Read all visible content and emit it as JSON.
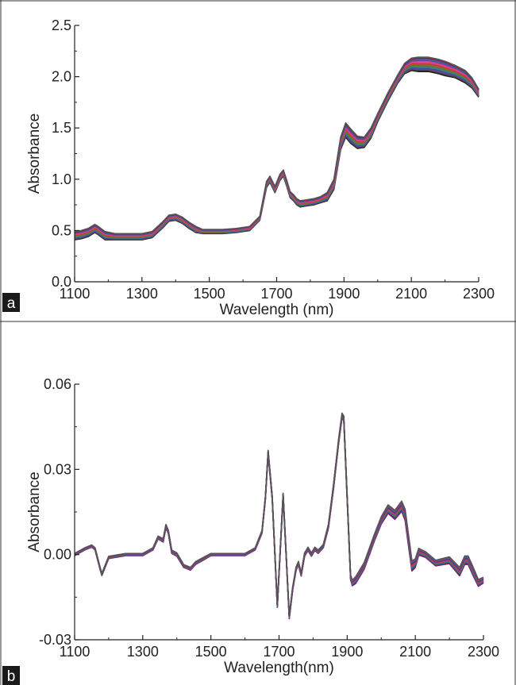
{
  "chart_data": [
    {
      "type": "line",
      "panel_label": "a",
      "xlabel": "Wavelength (nm)",
      "ylabel": "Absorbance",
      "xlim": [
        1100,
        2300
      ],
      "ylim": [
        0.0,
        2.5
      ],
      "xticks": [
        1100,
        1300,
        1500,
        1700,
        1900,
        2100,
        2300
      ],
      "yticks": [
        0.0,
        0.5,
        1.0,
        1.5,
        2.0,
        2.5
      ],
      "ytick_labels": [
        "0.0",
        "0.5",
        "1.0",
        "1.5",
        "2.0",
        "2.5"
      ],
      "grid": false,
      "n_spectra_drawn": 14,
      "series_colors": [
        "#1a1a1a",
        "#444444",
        "#7a3b8f",
        "#3a4fa0",
        "#2f8a8a",
        "#4a7d3a",
        "#8a6d2a",
        "#c0392b",
        "#d63b8a",
        "#e0457b",
        "#6b3fa0",
        "#2b6cb0",
        "#8b1e3f",
        "#555555"
      ],
      "x": [
        1100,
        1120,
        1140,
        1160,
        1170,
        1190,
        1220,
        1260,
        1300,
        1330,
        1360,
        1380,
        1400,
        1420,
        1440,
        1460,
        1480,
        1500,
        1540,
        1580,
        1620,
        1650,
        1670,
        1680,
        1695,
        1710,
        1720,
        1730,
        1740,
        1750,
        1760,
        1770,
        1790,
        1810,
        1830,
        1850,
        1870,
        1890,
        1905,
        1920,
        1940,
        1960,
        1980,
        2000,
        2030,
        2060,
        2080,
        2100,
        2120,
        2150,
        2180,
        2200,
        2230,
        2260,
        2280,
        2300
      ],
      "mean_spectrum": [
        0.45,
        0.46,
        0.48,
        0.52,
        0.5,
        0.45,
        0.44,
        0.44,
        0.44,
        0.46,
        0.55,
        0.62,
        0.63,
        0.6,
        0.55,
        0.51,
        0.49,
        0.49,
        0.49,
        0.5,
        0.52,
        0.62,
        0.95,
        1.0,
        0.9,
        1.02,
        1.06,
        0.96,
        0.85,
        0.82,
        0.78,
        0.76,
        0.77,
        0.78,
        0.8,
        0.83,
        0.95,
        1.35,
        1.48,
        1.42,
        1.36,
        1.36,
        1.45,
        1.6,
        1.8,
        1.98,
        2.08,
        2.12,
        2.12,
        2.12,
        2.1,
        2.08,
        2.05,
        2.0,
        1.94,
        1.84
      ],
      "spread": [
        0.04,
        0.04,
        0.04,
        0.04,
        0.04,
        0.04,
        0.03,
        0.03,
        0.03,
        0.03,
        0.03,
        0.03,
        0.03,
        0.03,
        0.03,
        0.03,
        0.02,
        0.02,
        0.02,
        0.02,
        0.02,
        0.02,
        0.03,
        0.03,
        0.03,
        0.03,
        0.03,
        0.03,
        0.03,
        0.03,
        0.03,
        0.03,
        0.03,
        0.03,
        0.03,
        0.04,
        0.05,
        0.06,
        0.07,
        0.07,
        0.06,
        0.05,
        0.05,
        0.04,
        0.04,
        0.04,
        0.05,
        0.06,
        0.07,
        0.07,
        0.07,
        0.07,
        0.06,
        0.06,
        0.05,
        0.04
      ]
    },
    {
      "type": "line",
      "panel_label": "b",
      "xlabel": "Wavelength(nm)",
      "ylabel": "Absorbance",
      "xlim": [
        1100,
        2300
      ],
      "ylim": [
        -0.03,
        0.06
      ],
      "xticks": [
        1100,
        1300,
        1500,
        1700,
        1900,
        2100,
        2300
      ],
      "yticks": [
        -0.03,
        0.0,
        0.03,
        0.06
      ],
      "ytick_labels": [
        "-0.03",
        "0.00",
        "0.03",
        "0.06"
      ],
      "grid": false,
      "n_spectra_drawn": 14,
      "series_colors": [
        "#7a2a6b",
        "#8b1e5a",
        "#5a2a8b",
        "#2b4fa0",
        "#2f8a8a",
        "#3a7d3a",
        "#c0392b",
        "#d63b8a",
        "#6b3fa0",
        "#8a2b4a",
        "#4a3a8a",
        "#2b6cb0",
        "#a83a6a",
        "#555555"
      ],
      "x": [
        1100,
        1130,
        1150,
        1160,
        1175,
        1180,
        1200,
        1250,
        1300,
        1330,
        1345,
        1360,
        1368,
        1375,
        1385,
        1400,
        1420,
        1440,
        1455,
        1470,
        1500,
        1550,
        1600,
        1630,
        1650,
        1660,
        1668,
        1680,
        1695,
        1712,
        1725,
        1730,
        1740,
        1750,
        1757,
        1765,
        1775,
        1785,
        1795,
        1805,
        1815,
        1830,
        1845,
        1860,
        1875,
        1885,
        1890,
        1900,
        1910,
        1915,
        1925,
        1950,
        1980,
        2000,
        2020,
        2040,
        2060,
        2070,
        2080,
        2090,
        2100,
        2110,
        2130,
        2160,
        2200,
        2230,
        2245,
        2255,
        2270,
        2285,
        2300
      ],
      "mean_spectrum": [
        0.0,
        0.002,
        0.003,
        0.002,
        -0.005,
        -0.007,
        -0.001,
        0.0,
        0.0,
        0.002,
        0.006,
        0.005,
        0.01,
        0.008,
        0.001,
        0.0,
        -0.004,
        -0.005,
        -0.003,
        -0.002,
        0.0,
        0.0,
        0.0,
        0.002,
        0.008,
        0.02,
        0.036,
        0.02,
        -0.018,
        0.021,
        -0.01,
        -0.022,
        -0.012,
        -0.005,
        -0.003,
        -0.007,
        0.0,
        0.002,
        0.0,
        0.002,
        0.001,
        0.003,
        0.01,
        0.024,
        0.04,
        0.049,
        0.048,
        0.02,
        -0.008,
        -0.01,
        -0.009,
        -0.004,
        0.006,
        0.012,
        0.016,
        0.014,
        0.017,
        0.014,
        0.005,
        -0.004,
        -0.003,
        0.001,
        0.0,
        -0.003,
        -0.002,
        -0.006,
        -0.002,
        -0.002,
        -0.006,
        -0.01,
        -0.009
      ],
      "spread": [
        0.0004,
        0.0004,
        0.0004,
        0.0004,
        0.0004,
        0.0004,
        0.0004,
        0.0004,
        0.0004,
        0.0004,
        0.0005,
        0.0006,
        0.0006,
        0.0006,
        0.0006,
        0.0006,
        0.0005,
        0.0005,
        0.0005,
        0.0005,
        0.0004,
        0.0004,
        0.0004,
        0.0004,
        0.0005,
        0.0006,
        0.0007,
        0.0006,
        0.0006,
        0.0006,
        0.0006,
        0.0006,
        0.0006,
        0.0006,
        0.0006,
        0.0006,
        0.0006,
        0.0006,
        0.0006,
        0.0006,
        0.0006,
        0.0006,
        0.0007,
        0.0008,
        0.0008,
        0.0008,
        0.0008,
        0.0008,
        0.0008,
        0.001,
        0.0012,
        0.0012,
        0.0012,
        0.0013,
        0.0015,
        0.0016,
        0.0018,
        0.002,
        0.002,
        0.0018,
        0.0015,
        0.0012,
        0.001,
        0.001,
        0.0012,
        0.0015,
        0.0015,
        0.0015,
        0.0015,
        0.0012,
        0.001
      ]
    }
  ]
}
